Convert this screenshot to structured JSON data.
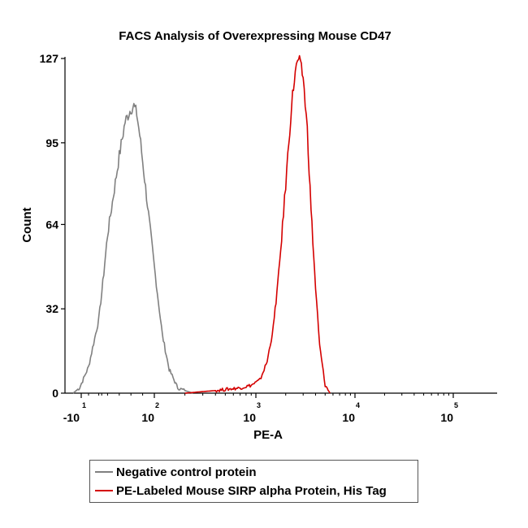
{
  "chart_data": {
    "type": "line",
    "title": "FACS Analysis of Overexpressing Mouse CD47",
    "xlabel": "PE-A",
    "ylabel": "Count",
    "x_scale": "logicle",
    "y_ticks": [
      "0",
      "32",
      "64",
      "95",
      "127"
    ],
    "y_tick_values": [
      0,
      32,
      64,
      95,
      127
    ],
    "ylim": [
      0,
      127
    ],
    "x_ticks": [
      {
        "base": "-10",
        "exponent": "1",
        "value": -10
      },
      {
        "base": "10",
        "exponent": "2",
        "value": 100
      },
      {
        "base": "10",
        "exponent": "3",
        "value": 1000
      },
      {
        "base": "10",
        "exponent": "4",
        "value": 10000
      },
      {
        "base": "10",
        "exponent": "5",
        "value": 100000
      }
    ],
    "grid": false,
    "legend_position": "bottom",
    "series": [
      {
        "name": "Negative control protein",
        "color": "#808080",
        "x": [
          -20,
          -12,
          -5,
          5,
          12,
          20,
          30,
          40,
          50,
          60,
          65,
          70,
          75,
          80,
          90,
          100,
          120,
          140,
          170,
          200,
          240
        ],
        "y": [
          0,
          2,
          10,
          28,
          42,
          60,
          75,
          90,
          103,
          108,
          109,
          106,
          98,
          88,
          68,
          48,
          22,
          9,
          2,
          1,
          0
        ]
      },
      {
        "name": "PE-Labeled Mouse SIRP alpha Protein, His Tag",
        "color": "#d40000",
        "x": [
          200,
          400,
          700,
          900,
          1100,
          1300,
          1500,
          1700,
          1900,
          2100,
          2300,
          2500,
          2700,
          3000,
          3300,
          3600,
          4000,
          4400,
          5000,
          5600
        ],
        "y": [
          0,
          1,
          2,
          3,
          5,
          12,
          25,
          45,
          68,
          90,
          110,
          122,
          127,
          120,
          100,
          70,
          40,
          18,
          3,
          0
        ]
      }
    ]
  }
}
